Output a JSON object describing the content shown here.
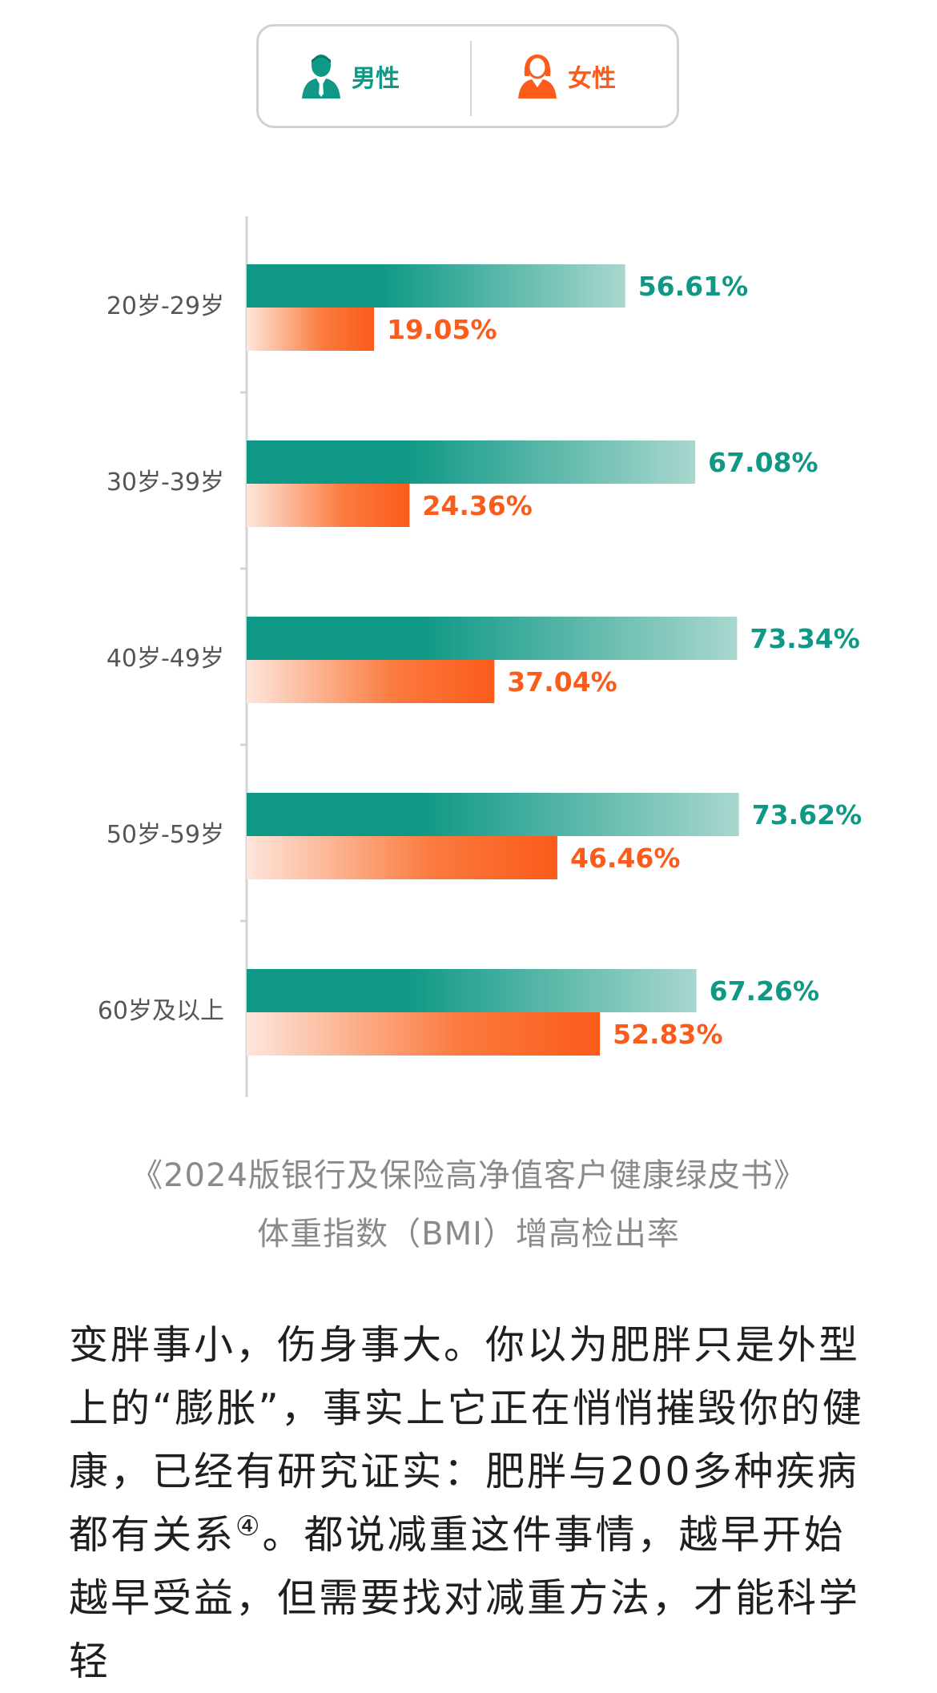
{
  "legend": {
    "male_label": "男性",
    "female_label": "女性",
    "male_icon": "male-person-icon",
    "female_icon": "female-person-icon"
  },
  "colors": {
    "male": "#0e9885",
    "male_fade": "#a8d7ce",
    "female": "#fb5b1b",
    "female_fade": "#fde6db"
  },
  "chart_data": {
    "type": "bar",
    "orientation": "horizontal",
    "categories": [
      "20岁-29岁",
      "30岁-39岁",
      "40岁-49岁",
      "50岁-59岁",
      "60岁及以上"
    ],
    "series": [
      {
        "name": "男性",
        "values": [
          56.61,
          67.08,
          73.34,
          73.62,
          67.26
        ],
        "labels": [
          "56.61%",
          "67.08%",
          "73.34%",
          "73.62%",
          "67.26%"
        ]
      },
      {
        "name": "女性",
        "values": [
          19.05,
          24.36,
          37.04,
          46.46,
          52.83
        ],
        "labels": [
          "19.05%",
          "24.36%",
          "37.04%",
          "46.46%",
          "52.83%"
        ]
      }
    ],
    "xlim": [
      0,
      100
    ],
    "legend_position": "top",
    "title": "《2024版银行及保险高净值客户健康绿皮书》",
    "subtitle": "体重指数（BMI）增高检出率"
  },
  "body": {
    "text_before_note": "变胖事小，伤身事大。你以为肥胖只是外型上的“膨胀”，事实上它正在悄悄摧毁你的健康，已经有研究证实：肥胖与200多种疾病都有关系",
    "note_mark": "④",
    "text_after_note": "。都说减重这件事情，越早开始越早受益，但需要找对减重方法，才能科学轻"
  }
}
